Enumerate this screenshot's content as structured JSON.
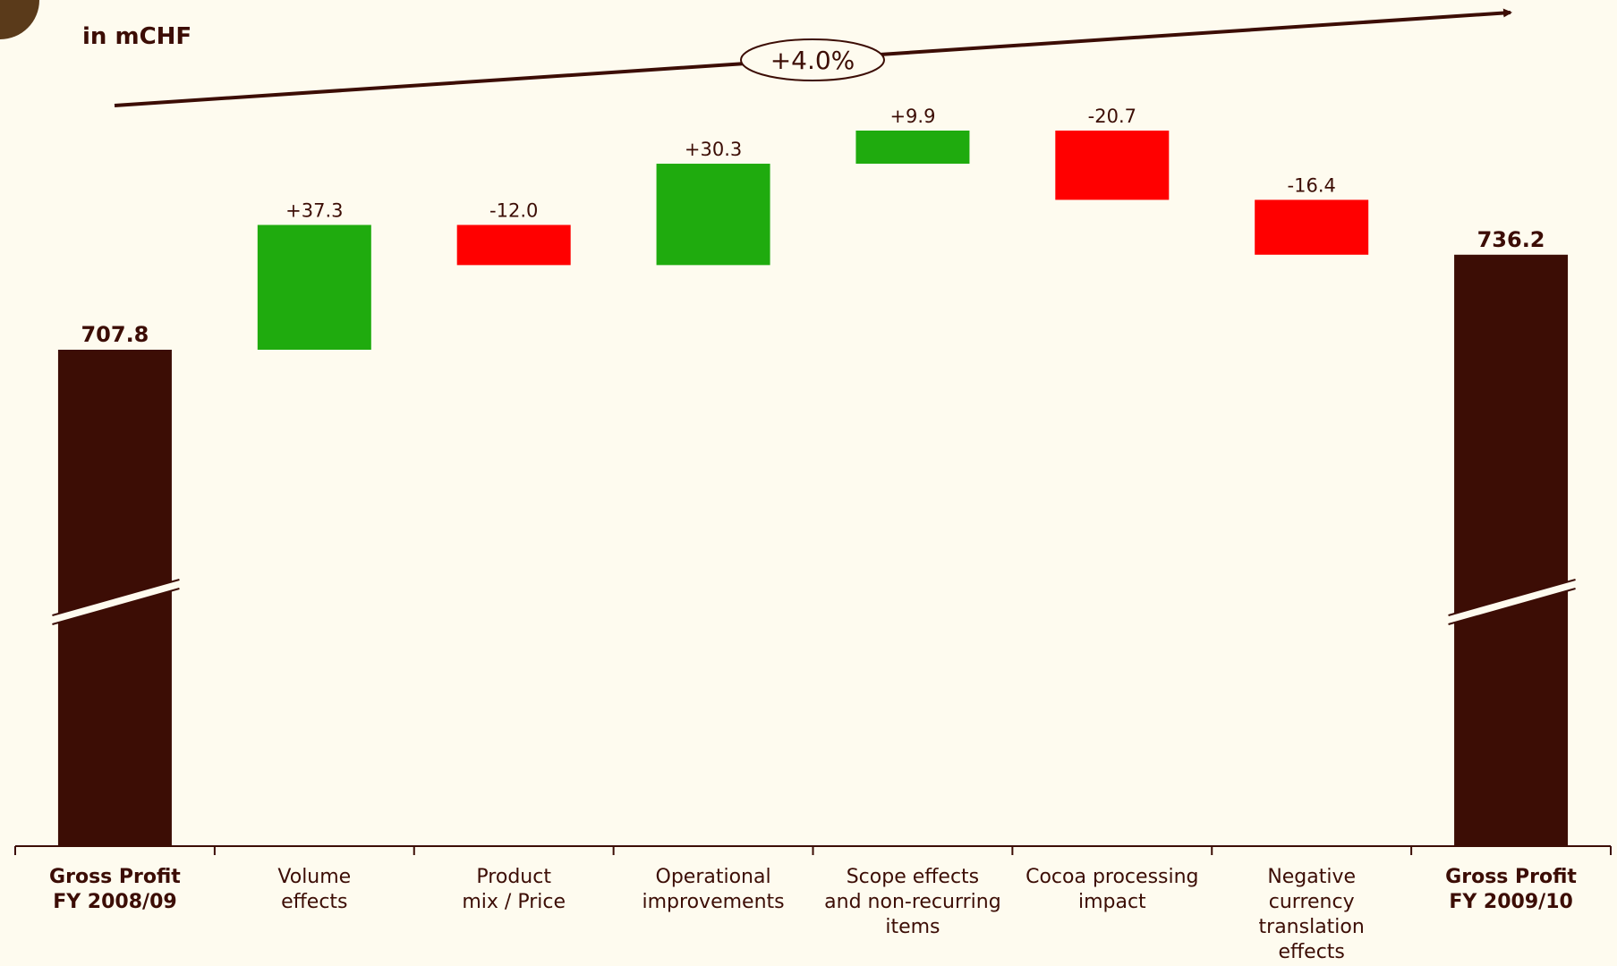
{
  "chart_data": {
    "type": "waterfall",
    "unit_label": "in mCHF",
    "annotation": "+4.0%",
    "categories": [
      "Gross Profit\nFY 2008/09",
      "Volume\neffects",
      "Product\nmix / Price",
      "Operational\nimprovements",
      "Scope effects\nand non-recurring\nitems",
      "Cocoa processing\nimpact",
      "Negative\ncurrency\ntranslation\neffects",
      "Gross Profit\nFY 2009/10"
    ],
    "measure": [
      "total",
      "relative",
      "relative",
      "relative",
      "relative",
      "relative",
      "relative",
      "total"
    ],
    "values": [
      707.8,
      37.3,
      -12.0,
      30.3,
      9.9,
      -20.7,
      -16.4,
      736.2
    ],
    "value_labels": [
      "707.8",
      "+37.3",
      "-12.0",
      "+30.3",
      "+9.9",
      "-20.7",
      "-16.4",
      "736.2"
    ],
    "increase_color": "#1fab0e",
    "decrease_color": "#ff0000",
    "total_color": "#3c0d05",
    "axis_break": true
  }
}
